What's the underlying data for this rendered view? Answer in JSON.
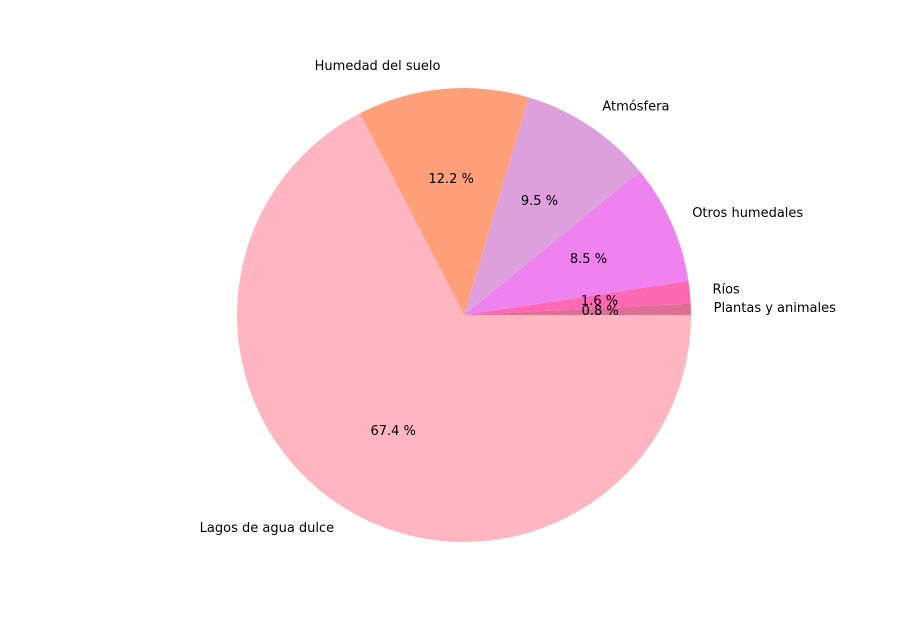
{
  "chart_data": {
    "type": "pie",
    "title": "",
    "start_angle_deg": 0,
    "direction": "counterclockwise",
    "slices": [
      {
        "label": "Plantas y animales",
        "value": 0.8,
        "pct_label": "0.8 %",
        "color": "#DB7093"
      },
      {
        "label": "Ríos",
        "value": 1.6,
        "pct_label": "1.6 %",
        "color": "#FF69B4"
      },
      {
        "label": "Otros humedales",
        "value": 8.5,
        "pct_label": "8.5 %",
        "color": "#EE82EE"
      },
      {
        "label": "Atmósfera",
        "value": 9.5,
        "pct_label": "9.5 %",
        "color": "#DDA0DD"
      },
      {
        "label": "Humedad del suelo",
        "value": 12.2,
        "pct_label": "12.2 %",
        "color": "#FFA07A"
      },
      {
        "label": "Lagos de agua dulce",
        "value": 67.4,
        "pct_label": "67.4 %",
        "color": "#FFB6C1"
      }
    ]
  }
}
